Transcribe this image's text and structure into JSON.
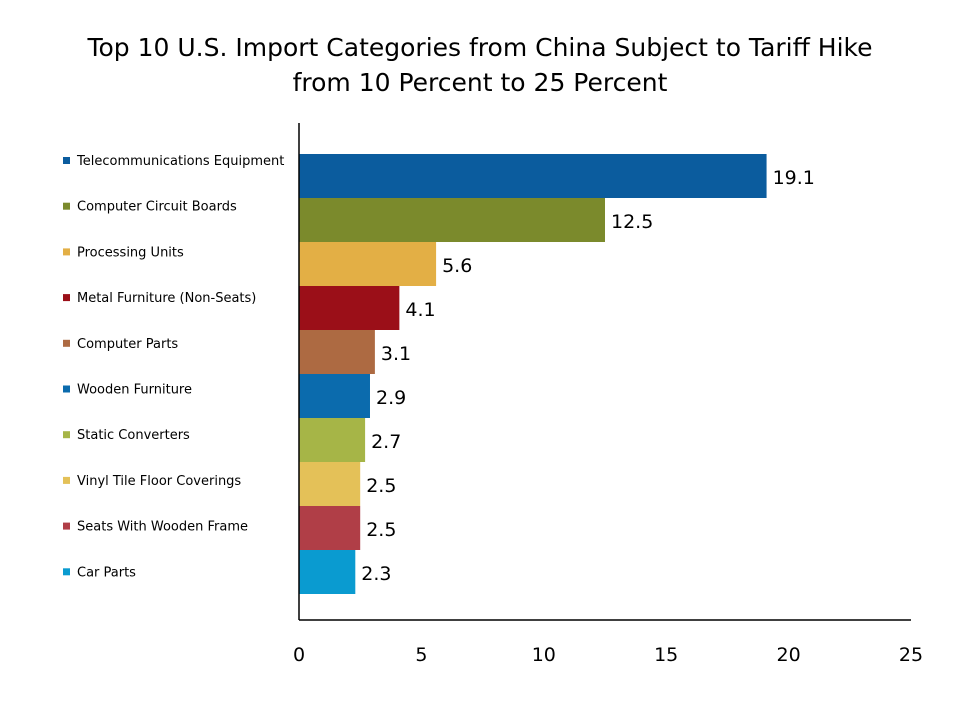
{
  "chart_data": {
    "type": "bar",
    "orientation": "horizontal",
    "title_lines": [
      "Top 10 U.S. Import Categories from China Subject to Tariff Hike",
      "from 10 Percent to 25 Percent"
    ],
    "categories": [
      "Telecommunications Equipment",
      "Computer Circuit Boards",
      "Processing Units",
      "Metal Furniture (Non-Seats)",
      "Computer Parts",
      "Wooden Furniture",
      "Static Converters",
      "Vinyl Tile Floor Coverings",
      "Seats With Wooden Frame",
      "Car Parts"
    ],
    "values": [
      19.1,
      12.5,
      5.6,
      4.1,
      3.1,
      2.9,
      2.7,
      2.5,
      2.5,
      2.3
    ],
    "value_labels": [
      "19.1",
      "12.5",
      "5.6",
      "4.1",
      "3.1",
      "2.9",
      "2.7",
      "2.5",
      "2.5",
      "2.3"
    ],
    "colors": [
      "#0B5C9E",
      "#7B8A2C",
      "#E3AF45",
      "#9B0F18",
      "#AD6A42",
      "#0B6BAD",
      "#A6B547",
      "#E4C158",
      "#B03E47",
      "#0A9BD0"
    ],
    "xlim": [
      0,
      25
    ],
    "xticks": [
      "0",
      "5",
      "10",
      "15",
      "20",
      "25"
    ],
    "xtick_values": [
      0,
      5,
      10,
      15,
      20,
      25
    ],
    "legend": "left",
    "grid": false
  }
}
